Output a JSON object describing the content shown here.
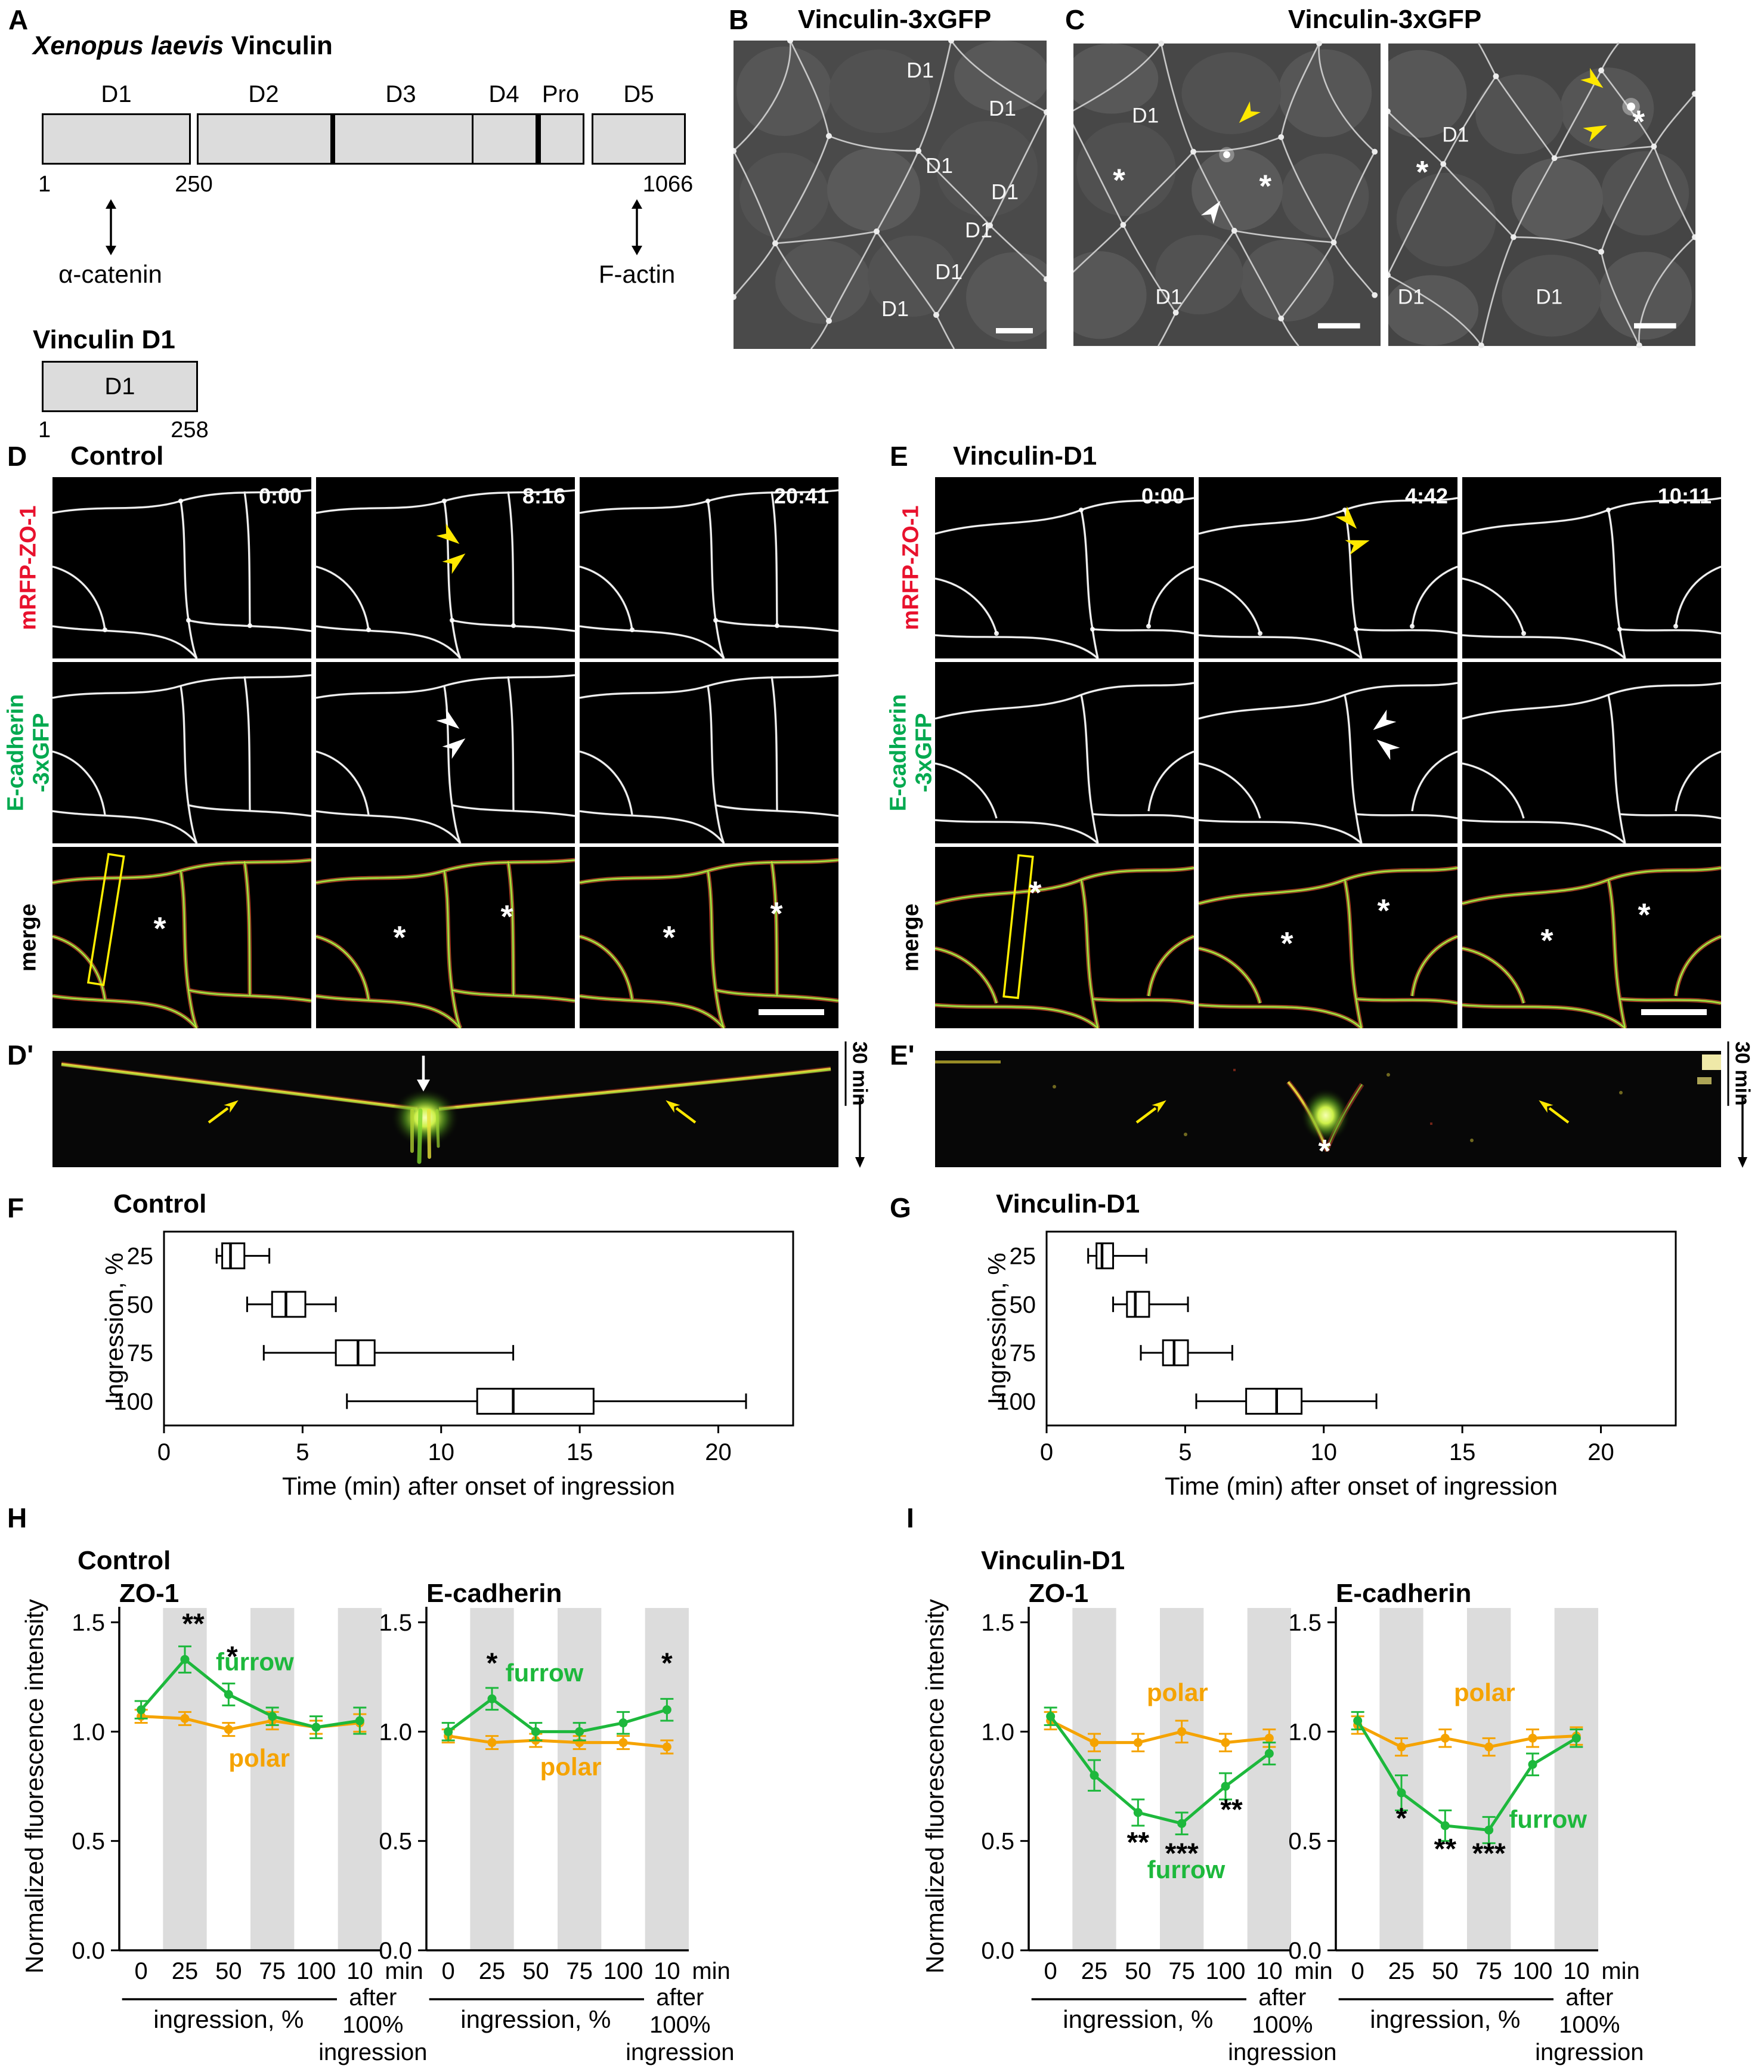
{
  "figure": {
    "colors": {
      "mrfp_label": "#e8112d",
      "ecad_label": "#00a94f",
      "merge_label": "#000000",
      "furrow": "#1db83c",
      "polar": "#f5a300",
      "roi": "#ffee00",
      "annotation_yellow": "#ffe800"
    },
    "panelA": {
      "label": "A",
      "title_italic": "Xenopus laevis",
      "title_rest": " Vinculin",
      "domains": [
        "D1",
        "D2",
        "D3",
        "D4",
        "Pro",
        "D5"
      ],
      "aa_start": "1",
      "aa_break": "250",
      "aa_end": "1066",
      "binding_left": "α-catenin",
      "binding_right": "F-actin",
      "construct_title": "Vinculin D1",
      "construct_domain": "D1",
      "construct_start": "1",
      "construct_end": "258"
    },
    "panelB": {
      "label": "B",
      "title": "Vinculin-3xGFP",
      "annotations": [
        "D1",
        "D1",
        "D1",
        "D1",
        "D1",
        "D1",
        "D1"
      ]
    },
    "panelC": {
      "label": "C",
      "title": "Vinculin-3xGFP",
      "left_annotations": [
        "D1",
        "*",
        "*",
        "D1"
      ],
      "right_annotations": [
        "*",
        "D1",
        "*",
        "D1",
        "D1"
      ]
    },
    "panelD": {
      "label": "D",
      "title": "Control",
      "row1_label": "mRFP-ZO-1",
      "row2_label_line1": "E-cadherin",
      "row2_label_line2": "-3xGFP",
      "row3_label": "merge",
      "timestamps": [
        "0:00",
        "8:16",
        "20:41"
      ],
      "asterisk": "*"
    },
    "panelE": {
      "label": "E",
      "title": "Vinculin-D1",
      "row1_label": "mRFP-ZO-1",
      "row2_label_line1": "E-cadherin",
      "row2_label_line2": "-3xGFP",
      "row3_label": "merge",
      "timestamps": [
        "0:00",
        "4:42",
        "10:11"
      ],
      "asterisk": "*"
    },
    "panelDp": {
      "label": "D'",
      "scale_label": "30 min"
    },
    "panelEp": {
      "label": "E'",
      "scale_label": "30 min",
      "asterisk": "*"
    },
    "panelF": {
      "label": "F"
    },
    "panelG": {
      "label": "G"
    },
    "panelH": {
      "label": "H",
      "title": "Control",
      "ylabel": "Normalized fluorescence intensity"
    },
    "panelI": {
      "label": "I",
      "title": "Vinculin-D1",
      "ylabel": "Normalized fluorescence intensity"
    }
  },
  "chart_data": [
    {
      "id": "F",
      "type": "boxplot",
      "title": "Control",
      "ylabel": "Ingression, %",
      "xlabel": "Time (min) after onset of ingression",
      "categories": [
        "25",
        "50",
        "75",
        "100"
      ],
      "xlim": [
        0,
        22.7
      ],
      "xticks": [
        0,
        5,
        10,
        15,
        20
      ],
      "boxes": [
        {
          "lo": 1.9,
          "q1": 2.1,
          "med": 2.4,
          "q3": 2.9,
          "hi": 3.8
        },
        {
          "lo": 3.0,
          "q1": 3.9,
          "med": 4.4,
          "q3": 5.1,
          "hi": 6.2
        },
        {
          "lo": 3.6,
          "q1": 6.2,
          "med": 7.0,
          "q3": 7.6,
          "hi": 12.6
        },
        {
          "lo": 6.6,
          "q1": 11.3,
          "med": 12.6,
          "q3": 15.5,
          "hi": 21.0
        }
      ]
    },
    {
      "id": "G",
      "type": "boxplot",
      "title": "Vinculin-D1",
      "ylabel": "Ingression, %",
      "xlabel": "Time (min) after onset of ingression",
      "categories": [
        "25",
        "50",
        "75",
        "100"
      ],
      "xlim": [
        0,
        22.7
      ],
      "xticks": [
        0,
        5,
        10,
        15,
        20
      ],
      "boxes": [
        {
          "lo": 1.5,
          "q1": 1.8,
          "med": 2.0,
          "q3": 2.4,
          "hi": 3.6
        },
        {
          "lo": 2.4,
          "q1": 2.9,
          "med": 3.2,
          "q3": 3.7,
          "hi": 5.1
        },
        {
          "lo": 3.4,
          "q1": 4.2,
          "med": 4.6,
          "q3": 5.1,
          "hi": 6.7
        },
        {
          "lo": 5.4,
          "q1": 7.2,
          "med": 8.3,
          "q3": 9.2,
          "hi": 11.9
        }
      ]
    },
    {
      "id": "H_ZO1",
      "type": "line",
      "title": "ZO-1",
      "categories": [
        "0",
        "25",
        "50",
        "75",
        "100",
        "10"
      ],
      "x_suffix": "min",
      "group_label": "ingression, %",
      "after_lines": [
        "after",
        "100%",
        "ingression"
      ],
      "ylim": [
        0,
        1.5
      ],
      "yticks": [
        "0.0",
        "0.5",
        "1.0",
        "1.5"
      ],
      "stripes": [
        1,
        3,
        5
      ],
      "series": [
        {
          "name": "furrow",
          "color": "#1db83c",
          "values": [
            1.1,
            1.33,
            1.17,
            1.07,
            1.02,
            1.05
          ],
          "err": [
            0.04,
            0.06,
            0.05,
            0.04,
            0.05,
            0.06
          ]
        },
        {
          "name": "polar",
          "color": "#f5a300",
          "values": [
            1.07,
            1.06,
            1.01,
            1.05,
            1.02,
            1.04
          ],
          "err": [
            0.03,
            0.03,
            0.03,
            0.04,
            0.03,
            0.04
          ]
        }
      ],
      "labels": [
        {
          "text": "furrow",
          "cat": 2.6,
          "y": 1.28,
          "color": "#1db83c"
        },
        {
          "text": "polar",
          "cat": 2.7,
          "y": 0.84,
          "color": "#f5a300"
        }
      ],
      "sig": [
        {
          "cat": 1,
          "dx": 14,
          "y": 1.45,
          "text": "**"
        },
        {
          "cat": 2,
          "dx": 6,
          "y": 1.3,
          "text": "*"
        }
      ]
    },
    {
      "id": "H_ECAD",
      "type": "line",
      "title": "E-cadherin",
      "categories": [
        "0",
        "25",
        "50",
        "75",
        "100",
        "10"
      ],
      "x_suffix": "min",
      "group_label": "ingression, %",
      "after_lines": [
        "after",
        "100%",
        "ingression"
      ],
      "ylim": [
        0,
        1.5
      ],
      "yticks": [
        "0.0",
        "0.5",
        "1.0",
        "1.5"
      ],
      "stripes": [
        1,
        3,
        5
      ],
      "series": [
        {
          "name": "furrow",
          "color": "#1db83c",
          "values": [
            1.0,
            1.15,
            1.0,
            1.0,
            1.04,
            1.1
          ],
          "err": [
            0.04,
            0.05,
            0.04,
            0.04,
            0.05,
            0.05
          ]
        },
        {
          "name": "polar",
          "color": "#f5a300",
          "values": [
            0.98,
            0.95,
            0.96,
            0.95,
            0.95,
            0.93
          ],
          "err": [
            0.03,
            0.03,
            0.03,
            0.03,
            0.03,
            0.03
          ]
        }
      ],
      "labels": [
        {
          "text": "furrow",
          "cat": 2.2,
          "y": 1.23,
          "color": "#1db83c"
        },
        {
          "text": "polar",
          "cat": 2.8,
          "y": 0.8,
          "color": "#f5a300"
        }
      ],
      "sig": [
        {
          "cat": 1,
          "dx": 0,
          "y": 1.27,
          "text": "*"
        },
        {
          "cat": 5,
          "dx": 0,
          "y": 1.27,
          "text": "*"
        }
      ]
    },
    {
      "id": "I_ZO1",
      "type": "line",
      "title": "ZO-1",
      "categories": [
        "0",
        "25",
        "50",
        "75",
        "100",
        "10"
      ],
      "x_suffix": "min",
      "group_label": "ingression, %",
      "after_lines": [
        "after",
        "100%",
        "ingression"
      ],
      "ylim": [
        0,
        1.5
      ],
      "yticks": [
        "0.0",
        "0.5",
        "1.0",
        "1.5"
      ],
      "stripes": [
        1,
        3,
        5
      ],
      "series": [
        {
          "name": "furrow",
          "color": "#1db83c",
          "values": [
            1.07,
            0.8,
            0.63,
            0.58,
            0.75,
            0.9
          ],
          "err": [
            0.04,
            0.07,
            0.06,
            0.05,
            0.06,
            0.05
          ]
        },
        {
          "name": "polar",
          "color": "#f5a300",
          "values": [
            1.05,
            0.95,
            0.95,
            1.0,
            0.95,
            0.97
          ],
          "err": [
            0.04,
            0.04,
            0.04,
            0.05,
            0.04,
            0.04
          ]
        }
      ],
      "labels": [
        {
          "text": "furrow",
          "cat": 3.1,
          "y": 0.33,
          "color": "#1db83c"
        },
        {
          "text": "polar",
          "cat": 2.9,
          "y": 1.14,
          "color": "#f5a300"
        }
      ],
      "sig": [
        {
          "cat": 2,
          "dx": 0,
          "y": 0.45,
          "text": "**"
        },
        {
          "cat": 3,
          "dx": 0,
          "y": 0.4,
          "text": "***"
        },
        {
          "cat": 4,
          "dx": 10,
          "y": 0.6,
          "text": "**"
        }
      ]
    },
    {
      "id": "I_ECAD",
      "type": "line",
      "title": "E-cadherin",
      "categories": [
        "0",
        "25",
        "50",
        "75",
        "100",
        "10"
      ],
      "x_suffix": "min",
      "group_label": "ingression, %",
      "after_lines": [
        "after",
        "100%",
        "ingression"
      ],
      "ylim": [
        0,
        1.5
      ],
      "yticks": [
        "0.0",
        "0.5",
        "1.0",
        "1.5"
      ],
      "stripes": [
        1,
        3,
        5
      ],
      "series": [
        {
          "name": "furrow",
          "color": "#1db83c",
          "values": [
            1.05,
            0.72,
            0.57,
            0.55,
            0.85,
            0.97
          ],
          "err": [
            0.04,
            0.08,
            0.07,
            0.06,
            0.05,
            0.04
          ]
        },
        {
          "name": "polar",
          "color": "#f5a300",
          "values": [
            1.03,
            0.93,
            0.97,
            0.93,
            0.97,
            0.98
          ],
          "err": [
            0.04,
            0.04,
            0.04,
            0.04,
            0.04,
            0.04
          ]
        }
      ],
      "labels": [
        {
          "text": "furrow",
          "cat": 4.35,
          "y": 0.56,
          "color": "#1db83c"
        },
        {
          "text": "polar",
          "cat": 2.9,
          "y": 1.14,
          "color": "#f5a300"
        }
      ],
      "sig": [
        {
          "cat": 1,
          "dx": 0,
          "y": 0.56,
          "text": "*"
        },
        {
          "cat": 2,
          "dx": 0,
          "y": 0.42,
          "text": "**"
        },
        {
          "cat": 3,
          "dx": 0,
          "y": 0.4,
          "text": "***"
        }
      ]
    }
  ]
}
